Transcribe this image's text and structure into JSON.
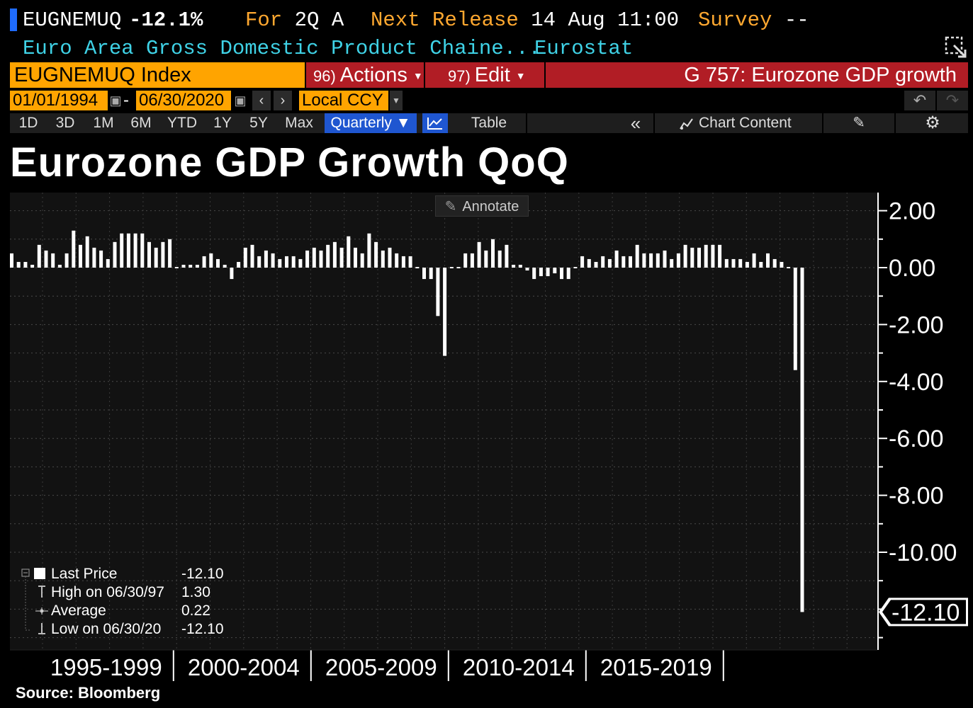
{
  "header": {
    "ticker": "EUGNEMUQ",
    "last_value": "-12.1%",
    "for_label": "For",
    "for_value": "2Q A",
    "next_release_label": "Next Release",
    "next_release_value": "14 Aug 11:00",
    "survey_label": "Survey",
    "survey_value": "--",
    "description": "Euro Area Gross Domestic Product Chaine...",
    "source": "Eurostat"
  },
  "command_bar": {
    "security": "EUGNEMUQ Index",
    "actions_num": "96)",
    "actions_label": "Actions",
    "edit_num": "97)",
    "edit_label": "Edit",
    "graph_title": "G 757: Eurozone GDP growth"
  },
  "date_bar": {
    "start_date": "01/01/1994",
    "separator": "-",
    "end_date": "06/30/2020",
    "currency": "Local CCY"
  },
  "toolbar": {
    "ranges": [
      "1D",
      "3D",
      "1M",
      "6M",
      "YTD",
      "1Y",
      "5Y",
      "Max"
    ],
    "frequency": "Quarterly ▼",
    "table_label": "Table",
    "chart_content_label": "Chart Content",
    "annotate_label": "Annotate"
  },
  "legend": {
    "last_label": "Last Price",
    "last_value": "-12.10",
    "high_label": "High on 06/30/97",
    "high_value": "1.30",
    "avg_label": "Average",
    "avg_value": "0.22",
    "low_label": "Low on 06/30/20",
    "low_value": "-12.10"
  },
  "source_note": "Source: Bloomberg",
  "colors": {
    "accent_orange": "#ffa400",
    "accent_red": "#b11d25",
    "accent_blue": "#1f56d0",
    "cyan_text": "#3fd2e6",
    "bar": "#ffffff"
  },
  "chart_data": {
    "type": "bar",
    "title": "Eurozone GDP Growth QoQ",
    "frequency": "quarterly",
    "x_start": "1994 Q1",
    "x_end": "2020 Q2",
    "xlabel": "",
    "ylabel": "",
    "ylim": [
      -13.5,
      2.2
    ],
    "yticks": [
      2,
      0,
      -2,
      -4,
      -6,
      -8,
      -10
    ],
    "ytick_labels": [
      "2.00",
      "0.00",
      "-2.00",
      "-4.00",
      "-6.00",
      "-8.00",
      "-10.00"
    ],
    "period_labels": [
      "1995-1999",
      "2000-2004",
      "2005-2009",
      "2010-2014",
      "2015-2019"
    ],
    "last_value_label": "-12.10",
    "values": [
      0.5,
      0.2,
      0.2,
      0.1,
      0.8,
      0.6,
      0.5,
      0.1,
      0.5,
      1.3,
      0.8,
      1.1,
      0.7,
      0.6,
      0.3,
      0.9,
      1.2,
      1.2,
      1.2,
      1.2,
      0.9,
      0.7,
      0.9,
      1.0,
      0.0,
      0.1,
      0.1,
      0.1,
      0.4,
      0.5,
      0.3,
      0.1,
      -0.4,
      0.2,
      0.7,
      0.8,
      0.4,
      0.6,
      0.5,
      0.3,
      0.4,
      0.4,
      0.3,
      0.6,
      0.7,
      0.6,
      0.8,
      0.9,
      0.7,
      1.1,
      0.7,
      0.5,
      1.2,
      0.9,
      0.6,
      0.7,
      0.5,
      0.4,
      0.4,
      0.0,
      -0.4,
      -0.4,
      -1.7,
      -3.1,
      0.0,
      0.0,
      0.5,
      0.5,
      0.9,
      0.6,
      1.0,
      0.6,
      0.8,
      0.1,
      0.1,
      -0.1,
      -0.4,
      -0.3,
      -0.3,
      -0.2,
      -0.4,
      -0.4,
      0.0,
      0.4,
      0.3,
      0.2,
      0.4,
      0.3,
      0.6,
      0.4,
      0.4,
      0.8,
      0.5,
      0.5,
      0.5,
      0.6,
      0.3,
      0.5,
      0.8,
      0.7,
      0.7,
      0.8,
      0.8,
      0.8,
      0.3,
      0.3,
      0.3,
      0.2,
      0.5,
      0.2,
      0.5,
      0.3,
      0.2,
      0.0,
      -3.6,
      -12.1
    ]
  }
}
